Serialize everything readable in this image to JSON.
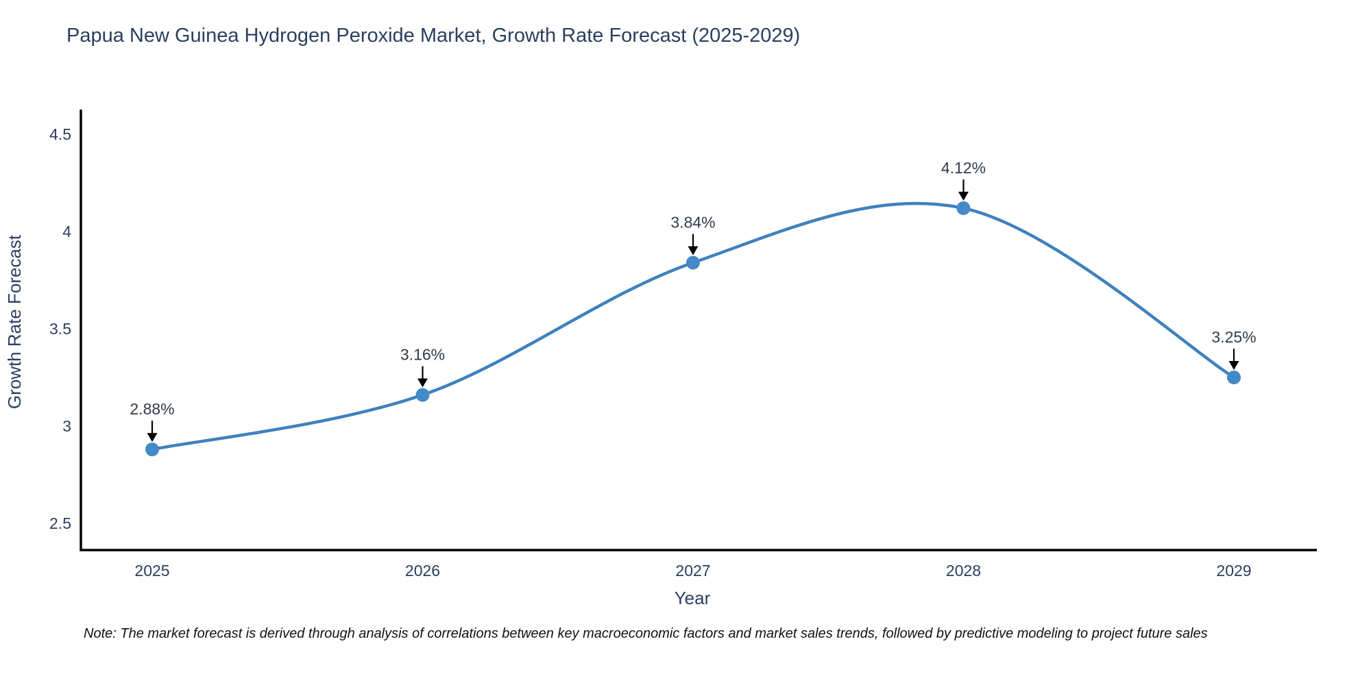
{
  "page": {
    "note": "Note: The market forecast is derived through analysis of correlations between key macroeconomic factors and market sales trends, followed by predictive modeling to project future sales"
  },
  "chart_data": {
    "type": "line",
    "line_shape": "spline",
    "title": "Papua New Guinea Hydrogen Peroxide Market, Growth Rate Forecast (2025-2029)",
    "xlabel": "Year",
    "ylabel": "Growth Rate Forecast",
    "categories": [
      "2025",
      "2026",
      "2027",
      "2028",
      "2029"
    ],
    "values": [
      2.88,
      3.16,
      3.84,
      4.12,
      3.25
    ],
    "point_labels": [
      "2.88%",
      "3.16%",
      "3.84%",
      "4.12%",
      "3.25%"
    ],
    "yticks": [
      "2.5",
      "3",
      "3.5",
      "4",
      "4.5"
    ],
    "ytick_values": [
      2.5,
      3.0,
      3.5,
      4.0,
      4.5
    ],
    "ylim": [
      2.37,
      4.63
    ],
    "grid": false,
    "legend": "none",
    "annotations_style": "value label above point with downward black arrow",
    "colors": {
      "line": "#3f81bd",
      "marker": "#4489c8",
      "arrow": "#000000",
      "axis": "#000000",
      "title": "#2a3f5f",
      "tick": "#2a3f5f",
      "note": "#111111",
      "background": "#ffffff"
    }
  }
}
